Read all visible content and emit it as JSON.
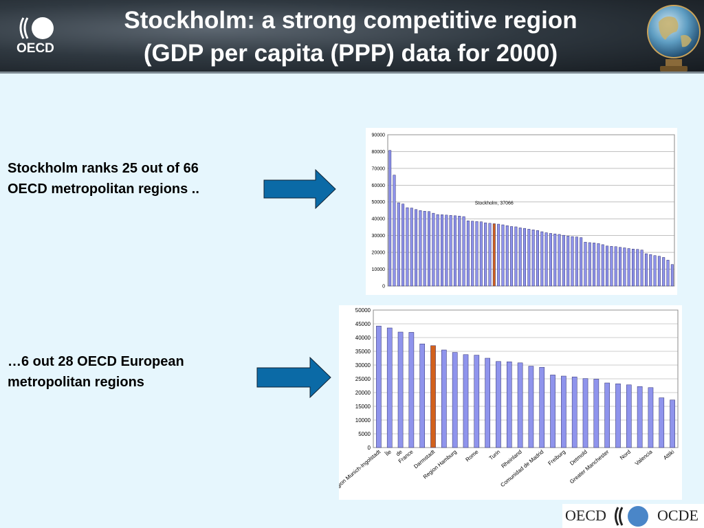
{
  "header": {
    "title_line1": "Stockholm: a strong competitive region",
    "title_line2": "(GDP per capita (PPP) data for 2000)",
    "logo_text": "OECD"
  },
  "bullets": {
    "line1a": "Stockholm ranks 25 out of 66",
    "line1b": "OECD metropolitan regions ..",
    "line2a": "…6 out 28 OECD European",
    "line2b": "metropolitan regions"
  },
  "footer": {
    "left": "OECD",
    "right": "OCDE"
  },
  "colors": {
    "bar": "#8f94ec",
    "highlight": "#d2611c",
    "arrow": "#0b6aa6"
  },
  "chart_data": [
    {
      "type": "bar",
      "ylim": [
        0,
        90000
      ],
      "yticks": [
        0,
        10000,
        20000,
        30000,
        40000,
        50000,
        60000,
        70000,
        80000,
        90000
      ],
      "highlight_index": 24,
      "annotation": "Stockholm, 37066",
      "grid": true,
      "values": [
        80700,
        66000,
        49500,
        48800,
        46600,
        46400,
        45500,
        44900,
        44500,
        44300,
        43300,
        42500,
        42400,
        42200,
        42000,
        41800,
        41600,
        41300,
        38800,
        38600,
        38400,
        38200,
        37600,
        37300,
        37066,
        36800,
        36400,
        35900,
        35400,
        35200,
        34600,
        34300,
        33800,
        33400,
        33000,
        32300,
        31700,
        31300,
        31000,
        30700,
        30200,
        29700,
        29400,
        29200,
        28800,
        26100,
        25800,
        25600,
        25300,
        24600,
        23800,
        23600,
        23400,
        23000,
        22700,
        22300,
        22000,
        21800,
        21400,
        19200,
        18700,
        18100,
        17700,
        17000,
        15400,
        12800
      ]
    },
    {
      "type": "bar",
      "ylim": [
        0,
        50000
      ],
      "yticks": [
        0,
        5000,
        10000,
        15000,
        20000,
        25000,
        30000,
        35000,
        40000,
        45000,
        50000
      ],
      "highlight_index": 5,
      "grid": true,
      "values": [
        44200,
        43500,
        42000,
        41900,
        37700,
        37066,
        35500,
        34600,
        33800,
        33600,
        32500,
        31300,
        31200,
        30800,
        29600,
        29200,
        26400,
        26000,
        25700,
        25100,
        24900,
        23500,
        23200,
        22800,
        22200,
        21800,
        18100,
        17300
      ],
      "xlabels": [
        {
          "i": 0,
          "t": "Region Munich-Ingolstadt"
        },
        {
          "i": 1,
          "t": "Île"
        },
        {
          "i": 2,
          "t": "de"
        },
        {
          "i": 3,
          "t": "France"
        },
        {
          "i": 5,
          "t": "Darmstadt"
        },
        {
          "i": 7,
          "t": "Region Hamburg"
        },
        {
          "i": 9,
          "t": "Rome"
        },
        {
          "i": 11,
          "t": "Turin"
        },
        {
          "i": 13,
          "t": "Rheinland"
        },
        {
          "i": 15,
          "t": "Comunidad de Madrid"
        },
        {
          "i": 17,
          "t": "Freiburg"
        },
        {
          "i": 19,
          "t": "Detmold"
        },
        {
          "i": 21,
          "t": "Greater Manchester"
        },
        {
          "i": 23,
          "t": "Nord"
        },
        {
          "i": 25,
          "t": "Valencia"
        },
        {
          "i": 27,
          "t": "Attiki"
        }
      ]
    }
  ]
}
